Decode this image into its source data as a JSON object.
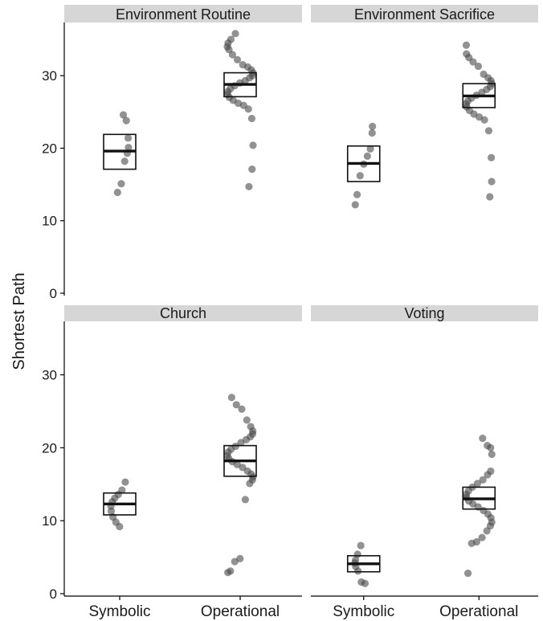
{
  "ylabel": "Shortest Path",
  "colors": {
    "strip": "#d6d6d6",
    "point": "#4a4a4a",
    "box": "#111111",
    "axis": "#000000"
  },
  "chart_data": [
    {
      "type": "scatter",
      "title": "Environment Routine",
      "categories": [
        "Symbolic",
        "Operational"
      ],
      "ylim": [
        0,
        37
      ],
      "yticks": [
        0,
        10,
        20,
        30
      ],
      "summary": [
        {
          "category": "Symbolic",
          "mean": 19.6,
          "lower": 17.1,
          "upper": 21.9
        },
        {
          "category": "Operational",
          "mean": 28.8,
          "lower": 27.1,
          "upper": 30.4
        }
      ],
      "points": [
        {
          "category": "Symbolic",
          "values": [
            24.6,
            23.8,
            21.4,
            20.1,
            19.3,
            18.2,
            15.1,
            13.9
          ]
        },
        {
          "category": "Operational",
          "values": [
            35.8,
            35.0,
            34.5,
            34.0,
            33.6,
            32.9,
            32.2,
            31.5,
            31.2,
            30.8,
            30.4,
            30.0,
            29.7,
            29.3,
            29.0,
            28.6,
            28.2,
            27.8,
            27.4,
            27.0,
            26.6,
            26.2,
            25.9,
            25.4,
            24.1,
            20.4,
            17.1,
            14.7
          ]
        }
      ]
    },
    {
      "type": "scatter",
      "title": "Environment Sacrifice",
      "categories": [
        "Symbolic",
        "Operational"
      ],
      "ylim": [
        0,
        37
      ],
      "yticks": [
        0,
        10,
        20,
        30
      ],
      "summary": [
        {
          "category": "Symbolic",
          "mean": 17.9,
          "lower": 15.4,
          "upper": 20.3
        },
        {
          "category": "Operational",
          "mean": 27.2,
          "lower": 25.6,
          "upper": 28.9
        }
      ],
      "points": [
        {
          "category": "Symbolic",
          "values": [
            23.0,
            22.1,
            19.9,
            18.9,
            17.8,
            16.2,
            13.6,
            12.2
          ]
        },
        {
          "category": "Operational",
          "values": [
            34.2,
            33.0,
            32.5,
            31.9,
            31.3,
            30.2,
            29.7,
            29.3,
            28.9,
            28.5,
            28.1,
            27.7,
            27.3,
            26.9,
            26.5,
            26.1,
            25.7,
            25.2,
            24.7,
            24.3,
            23.9,
            22.4,
            18.7,
            15.4,
            13.3
          ]
        }
      ]
    },
    {
      "type": "scatter",
      "title": "Church",
      "categories": [
        "Symbolic",
        "Operational"
      ],
      "ylim": [
        0,
        37
      ],
      "yticks": [
        0,
        10,
        20,
        30
      ],
      "summary": [
        {
          "category": "Symbolic",
          "mean": 12.3,
          "lower": 10.8,
          "upper": 13.8
        },
        {
          "category": "Operational",
          "mean": 18.2,
          "lower": 16.1,
          "upper": 20.3
        }
      ],
      "points": [
        {
          "category": "Symbolic",
          "values": [
            15.3,
            14.2,
            13.6,
            13.1,
            12.6,
            12.0,
            11.3,
            10.5,
            9.8,
            9.2
          ]
        },
        {
          "category": "Operational",
          "values": [
            26.9,
            25.9,
            25.3,
            23.8,
            22.9,
            22.3,
            21.9,
            21.5,
            21.1,
            20.7,
            20.2,
            19.8,
            19.4,
            18.9,
            18.5,
            18.1,
            17.7,
            17.3,
            16.8,
            16.4,
            16.0,
            15.6,
            15.1,
            12.9,
            4.8,
            4.4,
            3.1,
            2.9
          ]
        }
      ]
    },
    {
      "type": "scatter",
      "title": "Voting",
      "categories": [
        "Symbolic",
        "Operational"
      ],
      "ylim": [
        0,
        37
      ],
      "yticks": [
        0,
        10,
        20,
        30
      ],
      "summary": [
        {
          "category": "Symbolic",
          "mean": 4.1,
          "lower": 3.0,
          "upper": 5.2
        },
        {
          "category": "Operational",
          "mean": 13.0,
          "lower": 11.6,
          "upper": 14.6
        }
      ],
      "points": [
        {
          "category": "Symbolic",
          "values": [
            6.6,
            5.4,
            4.6,
            4.2,
            3.7,
            3.1,
            1.6,
            1.4
          ]
        },
        {
          "category": "Operational",
          "values": [
            21.3,
            20.3,
            20.0,
            19.1,
            16.8,
            16.3,
            15.6,
            15.1,
            14.6,
            14.1,
            13.6,
            13.2,
            12.7,
            12.3,
            11.9,
            11.4,
            10.9,
            10.4,
            9.8,
            9.3,
            8.6,
            7.7,
            7.1,
            6.9,
            2.8
          ]
        }
      ]
    }
  ]
}
